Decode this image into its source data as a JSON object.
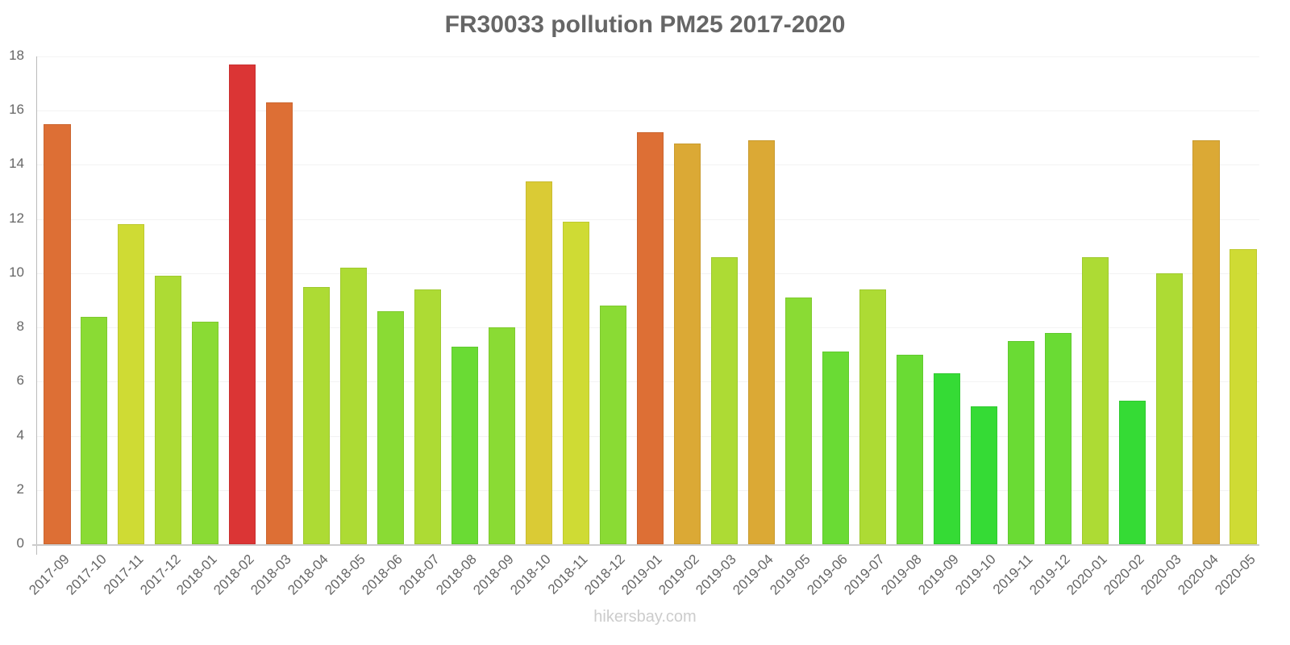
{
  "title": "FR30033 pollution PM25 2017-2020",
  "footer": "hikersbay.com",
  "chart_data": {
    "type": "bar",
    "title": "FR30033 pollution PM25 2017-2020",
    "xlabel": "",
    "ylabel": "",
    "ylim": [
      0,
      18
    ],
    "yticks": [
      0,
      2,
      4,
      6,
      8,
      10,
      12,
      14,
      16,
      18
    ],
    "grid": true,
    "legend": null,
    "categories": [
      "2017-09",
      "2017-10",
      "2017-11",
      "2017-12",
      "2018-01",
      "2018-02",
      "2018-03",
      "2018-04",
      "2018-05",
      "2018-06",
      "2018-07",
      "2018-08",
      "2018-09",
      "2018-10",
      "2018-11",
      "2018-12",
      "2019-01",
      "2019-02",
      "2019-03",
      "2019-04",
      "2019-05",
      "2019-06",
      "2019-07",
      "2019-08",
      "2019-09",
      "2019-10",
      "2019-11",
      "2019-12",
      "2020-01",
      "2020-02",
      "2020-03",
      "2020-04",
      "2020-05"
    ],
    "values": [
      15.5,
      8.4,
      11.8,
      9.9,
      8.2,
      17.7,
      16.3,
      9.5,
      10.2,
      8.6,
      9.4,
      7.3,
      8.0,
      13.4,
      11.9,
      8.8,
      15.2,
      14.8,
      10.6,
      14.9,
      9.1,
      7.1,
      9.4,
      7.0,
      6.3,
      5.1,
      7.5,
      7.8,
      10.6,
      5.3,
      10.0,
      14.9,
      10.9
    ],
    "colors": [
      "#dd6f35",
      "#8adb34",
      "#cfdb34",
      "#addb34",
      "#8adb34",
      "#db3535",
      "#dd6f35",
      "#addb34",
      "#addb34",
      "#8adb34",
      "#addb34",
      "#6adb34",
      "#8adb34",
      "#dacb35",
      "#cfdb34",
      "#8adb34",
      "#dd6f35",
      "#dba935",
      "#addb34",
      "#dba935",
      "#8adb34",
      "#6adb34",
      "#addb34",
      "#6adb34",
      "#35db35",
      "#35db35",
      "#6adb34",
      "#6adb34",
      "#addb34",
      "#35db35",
      "#addb34",
      "#dba935",
      "#cfdb34"
    ]
  }
}
